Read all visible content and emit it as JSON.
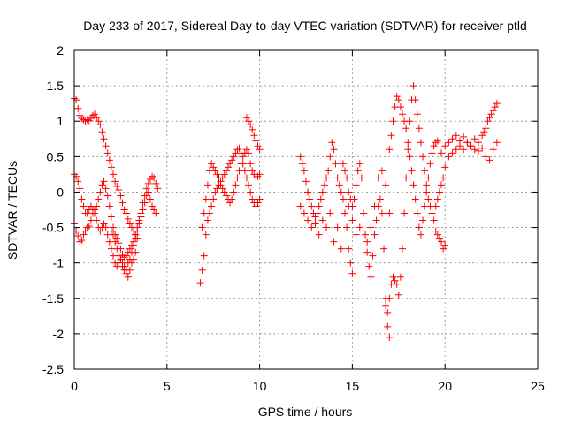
{
  "chart_data": {
    "type": "scatter",
    "title": "Day 233 of 2017, Sidereal Day-to-day VTEC variation (SDTVAR) for receiver ptld",
    "xlabel": "GPS time / hours",
    "ylabel": "SDTVAR / TECUs",
    "xlim": [
      0,
      25
    ],
    "ylim": [
      -2.5,
      2
    ],
    "xticks": [
      0,
      5,
      10,
      15,
      20,
      25
    ],
    "xtick_labels": [
      "0",
      "5",
      "10",
      "15",
      "20",
      "25"
    ],
    "yticks": [
      -2.5,
      -2,
      -1.5,
      -1,
      -0.5,
      0,
      0.5,
      1,
      1.5,
      2
    ],
    "ytick_labels": [
      "-2.5",
      "-2",
      "-1.5",
      "-1",
      "-0.5",
      "0",
      "0.5",
      "1",
      "1.5",
      "2"
    ],
    "grid": true,
    "marker": "+",
    "color": "#ff0000",
    "series": [
      {
        "x": [
          0.0,
          0.1,
          0.2,
          0.3,
          0.4,
          0.5,
          0.6,
          0.7,
          0.8,
          0.9,
          1.0,
          1.1,
          1.2,
          1.3,
          1.4,
          1.5,
          1.6,
          1.7,
          1.8,
          1.9,
          2.0,
          2.1,
          2.2,
          2.3,
          2.4,
          2.5,
          2.6,
          2.7,
          2.8,
          2.9,
          3.0,
          3.1,
          3.2,
          3.3,
          3.4
        ],
        "y": [
          1.32,
          1.3,
          1.18,
          1.08,
          1.04,
          1.02,
          1.0,
          1.02,
          1.01,
          1.04,
          1.08,
          1.1,
          1.05,
          1.0,
          0.95,
          0.85,
          0.75,
          0.65,
          0.55,
          0.45,
          0.35,
          0.25,
          0.15,
          0.08,
          0.03,
          -0.05,
          -0.15,
          -0.25,
          -0.3,
          -0.38,
          -0.45,
          -0.5,
          -0.55,
          -0.6,
          -0.65
        ]
      },
      {
        "x": [
          0.0,
          0.1,
          0.2,
          0.3,
          0.4,
          0.5,
          0.6,
          0.7,
          0.8,
          0.9,
          1.0,
          1.1,
          1.2,
          1.3,
          1.4,
          1.5,
          1.6,
          1.7,
          1.8,
          1.9,
          2.0,
          2.1,
          2.2,
          2.3,
          2.4,
          2.5,
          2.6,
          2.7,
          2.8,
          2.9,
          3.0,
          3.1,
          3.2,
          3.3
        ],
        "y": [
          0.25,
          0.22,
          0.15,
          0.05,
          -0.1,
          -0.2,
          -0.3,
          -0.3,
          -0.25,
          -0.2,
          -0.25,
          -0.3,
          -0.4,
          -0.5,
          -0.55,
          -0.5,
          -0.45,
          -0.5,
          -0.6,
          -0.7,
          -0.8,
          -0.9,
          -1.0,
          -1.05,
          -1.0,
          -0.95,
          -1.05,
          -1.1,
          -1.15,
          -1.2,
          -1.1,
          -1.0,
          -0.95,
          -0.85
        ]
      },
      {
        "x": [
          0.0,
          0.1,
          0.2,
          0.3,
          0.4,
          0.5,
          0.6,
          0.7,
          0.8,
          0.9,
          1.0,
          1.1,
          1.2,
          1.3,
          1.4,
          1.5,
          1.6,
          1.7,
          1.8,
          1.9,
          2.0,
          2.1,
          2.2,
          2.3,
          2.4,
          2.5,
          2.6,
          2.7,
          2.8,
          2.9,
          3.0,
          3.1,
          3.2,
          3.3,
          3.4,
          3.5,
          3.6,
          3.7,
          3.8,
          3.9,
          4.0,
          4.1,
          4.2,
          4.3,
          4.4,
          4.5
        ],
        "y": [
          -0.45,
          -0.55,
          -0.62,
          -0.7,
          -0.68,
          -0.6,
          -0.55,
          -0.5,
          -0.48,
          -0.4,
          -0.3,
          -0.25,
          -0.2,
          -0.1,
          0.0,
          0.1,
          0.15,
          0.05,
          -0.05,
          -0.2,
          -0.35,
          -0.5,
          -0.6,
          -0.65,
          -0.72,
          -0.8,
          -0.88,
          -0.92,
          -0.9,
          -0.85,
          -0.8,
          -0.75,
          -0.7,
          -0.6,
          -0.5,
          -0.4,
          -0.3,
          -0.15,
          -0.05,
          0.05,
          0.12,
          0.18,
          0.22,
          0.2,
          0.12,
          0.05
        ]
      },
      {
        "x": [
          2.0,
          2.1,
          2.2,
          2.3,
          2.4,
          2.5,
          2.6,
          2.7,
          2.8,
          2.9,
          3.0,
          3.1,
          3.2,
          3.3,
          3.4,
          3.5,
          3.6,
          3.7,
          3.8,
          3.9,
          4.0,
          4.1,
          4.2,
          4.3,
          4.4
        ],
        "y": [
          -0.55,
          -0.6,
          -0.7,
          -0.8,
          -0.9,
          -0.95,
          -1.0,
          -1.05,
          -1.1,
          -1.0,
          -0.95,
          -0.85,
          -0.75,
          -0.65,
          -0.55,
          -0.45,
          -0.35,
          -0.25,
          -0.15,
          -0.05,
          0.0,
          -0.1,
          -0.2,
          -0.25,
          -0.3
        ]
      },
      {
        "x": [
          6.8,
          6.9,
          7.0,
          7.1,
          7.2,
          7.3,
          7.4,
          7.5,
          7.6,
          7.7,
          7.8,
          7.9,
          8.0,
          8.1,
          8.2,
          8.3,
          8.4,
          8.5,
          8.6,
          8.7,
          8.8,
          8.9,
          9.0,
          9.1,
          9.2,
          9.3,
          9.4,
          9.5,
          9.6,
          9.7,
          9.8,
          9.9,
          10.0
        ],
        "y": [
          -1.28,
          -1.1,
          -0.9,
          -0.6,
          -0.4,
          -0.3,
          -0.2,
          -0.1,
          0.0,
          0.05,
          0.1,
          0.15,
          0.2,
          0.25,
          0.3,
          0.35,
          0.4,
          0.45,
          0.5,
          0.55,
          0.6,
          0.62,
          0.55,
          0.4,
          0.3,
          0.2,
          0.1,
          0.0,
          -0.1,
          -0.15,
          -0.2,
          -0.15,
          -0.1
        ]
      },
      {
        "x": [
          6.9,
          7.0,
          7.1,
          7.2,
          7.3,
          7.4,
          7.5,
          7.6,
          7.7,
          7.8,
          7.9,
          8.0,
          8.1,
          8.2,
          8.3,
          8.4,
          8.5,
          8.6,
          8.7,
          8.8,
          8.9,
          9.0,
          9.1,
          9.2,
          9.3,
          9.4,
          9.5,
          9.6,
          9.7,
          9.8,
          9.9,
          10.0
        ],
        "y": [
          -0.5,
          -0.3,
          -0.1,
          0.1,
          0.3,
          0.4,
          0.35,
          0.3,
          0.25,
          0.2,
          0.1,
          0.05,
          0.0,
          -0.05,
          -0.1,
          -0.15,
          -0.1,
          0.0,
          0.1,
          0.2,
          0.3,
          0.4,
          0.5,
          0.55,
          0.6,
          0.55,
          0.4,
          0.3,
          0.25,
          0.2,
          0.22,
          0.25
        ]
      },
      {
        "x": [
          9.3,
          9.4,
          9.5,
          9.6,
          9.7,
          9.8,
          9.9,
          10.0
        ],
        "y": [
          1.05,
          1.0,
          0.95,
          0.88,
          0.8,
          0.72,
          0.65,
          0.6
        ]
      },
      {
        "x": [
          12.2,
          12.3,
          12.4,
          12.5,
          12.6,
          12.7,
          12.8,
          12.9,
          13.0,
          13.1,
          13.2,
          13.3,
          13.4,
          13.5,
          13.6,
          13.7,
          13.8,
          13.9,
          14.0,
          14.1,
          14.2,
          14.3,
          14.4,
          14.5,
          14.6,
          14.7,
          14.8,
          14.9,
          15.0
        ],
        "y": [
          0.5,
          0.4,
          0.3,
          0.15,
          0.0,
          -0.1,
          -0.2,
          -0.3,
          -0.35,
          -0.3,
          -0.2,
          -0.1,
          0.0,
          0.1,
          0.2,
          0.3,
          0.5,
          0.7,
          0.6,
          0.4,
          0.2,
          0.1,
          0.0,
          -0.1,
          -0.3,
          -0.5,
          -0.8,
          -1.0,
          -1.15
        ]
      },
      {
        "x": [
          12.2,
          12.4,
          12.6,
          12.8,
          13.0,
          13.2,
          13.4,
          13.6,
          13.8,
          14.0,
          14.2,
          14.4,
          14.6,
          14.8,
          15.0,
          15.2,
          15.4,
          15.6,
          15.8,
          16.0,
          16.2,
          16.4,
          16.6,
          16.8,
          17.0
        ],
        "y": [
          -0.2,
          -0.3,
          -0.4,
          -0.5,
          -0.45,
          -0.6,
          -0.4,
          -0.5,
          -0.3,
          -0.7,
          -0.5,
          -0.8,
          -0.3,
          -0.2,
          -0.4,
          -0.6,
          -0.5,
          -0.3,
          -0.7,
          -0.5,
          -0.2,
          0.2,
          0.3,
          0.1,
          -0.3
        ]
      },
      {
        "x": [
          14.5,
          14.6,
          14.7,
          14.8,
          14.9,
          15.0,
          15.1,
          15.2,
          15.3,
          15.4,
          15.5,
          15.6,
          15.7,
          15.8,
          15.9,
          16.0,
          16.1,
          16.2,
          16.3,
          16.4,
          16.5,
          16.6,
          16.7,
          16.8,
          16.9,
          17.0
        ],
        "y": [
          0.4,
          0.3,
          0.2,
          0.0,
          -0.1,
          -0.2,
          -0.1,
          0.1,
          0.3,
          0.4,
          0.2,
          -0.3,
          -0.6,
          -0.85,
          -1.05,
          -1.2,
          -0.9,
          -0.6,
          -0.4,
          -0.2,
          -0.1,
          -0.3,
          -0.8,
          -1.5,
          -1.9,
          -2.05
        ]
      },
      {
        "x": [
          16.8,
          16.9,
          17.0,
          17.1,
          17.2,
          17.3,
          17.4,
          17.5,
          17.6,
          17.7,
          17.8,
          17.9,
          18.0,
          18.1,
          18.2,
          18.3,
          18.4,
          18.5,
          18.6,
          18.7,
          18.8,
          18.9,
          19.0,
          19.1,
          19.2,
          19.3,
          19.4,
          19.5,
          19.6,
          19.7,
          19.8,
          19.9,
          20.0
        ],
        "y": [
          -1.6,
          -1.7,
          -1.5,
          -1.3,
          -1.2,
          -1.25,
          -1.3,
          -1.45,
          -1.2,
          -0.8,
          -0.3,
          0.2,
          0.6,
          1.0,
          1.3,
          1.5,
          1.3,
          1.1,
          0.9,
          0.7,
          0.5,
          0.3,
          0.1,
          -0.1,
          -0.2,
          -0.3,
          -0.4,
          -0.55,
          -0.6,
          -0.65,
          -0.7,
          -0.8,
          -0.75
        ]
      },
      {
        "x": [
          17.0,
          17.1,
          17.2,
          17.3,
          17.4,
          17.5,
          17.6,
          17.7,
          17.8,
          17.9,
          18.0,
          18.1,
          18.2,
          18.3,
          18.4,
          18.5,
          18.6,
          18.7,
          18.8,
          18.9,
          19.0,
          19.1,
          19.2,
          19.3,
          19.4,
          19.5,
          19.6
        ],
        "y": [
          0.6,
          0.8,
          1.0,
          1.2,
          1.35,
          1.3,
          1.2,
          1.1,
          1.0,
          0.9,
          0.7,
          0.5,
          0.3,
          0.1,
          -0.1,
          -0.3,
          -0.5,
          -0.6,
          -0.4,
          -0.2,
          0.0,
          0.2,
          0.4,
          0.55,
          0.65,
          0.7,
          0.72
        ]
      },
      {
        "x": [
          19.5,
          19.6,
          19.7,
          19.8,
          19.9,
          20.0,
          20.2,
          20.4,
          20.6,
          20.8,
          21.0,
          21.2,
          21.4,
          21.6,
          21.8,
          22.0,
          22.1,
          22.2,
          22.3,
          22.4,
          22.5,
          22.6,
          22.7,
          22.8
        ],
        "y": [
          -0.2,
          -0.1,
          0.0,
          0.1,
          0.2,
          0.35,
          0.5,
          0.55,
          0.6,
          0.65,
          0.6,
          0.7,
          0.65,
          0.75,
          0.7,
          0.8,
          0.85,
          0.9,
          1.0,
          1.05,
          1.1,
          1.15,
          1.2,
          1.25
        ]
      },
      {
        "x": [
          19.8,
          20.0,
          20.2,
          20.4,
          20.6,
          20.8,
          21.0,
          21.2,
          21.4,
          21.6,
          21.8,
          22.0,
          22.2,
          22.4,
          22.6,
          22.8
        ],
        "y": [
          0.55,
          0.65,
          0.7,
          0.75,
          0.8,
          0.72,
          0.78,
          0.7,
          0.65,
          0.6,
          0.58,
          0.62,
          0.5,
          0.45,
          0.6,
          0.7
        ]
      }
    ]
  }
}
